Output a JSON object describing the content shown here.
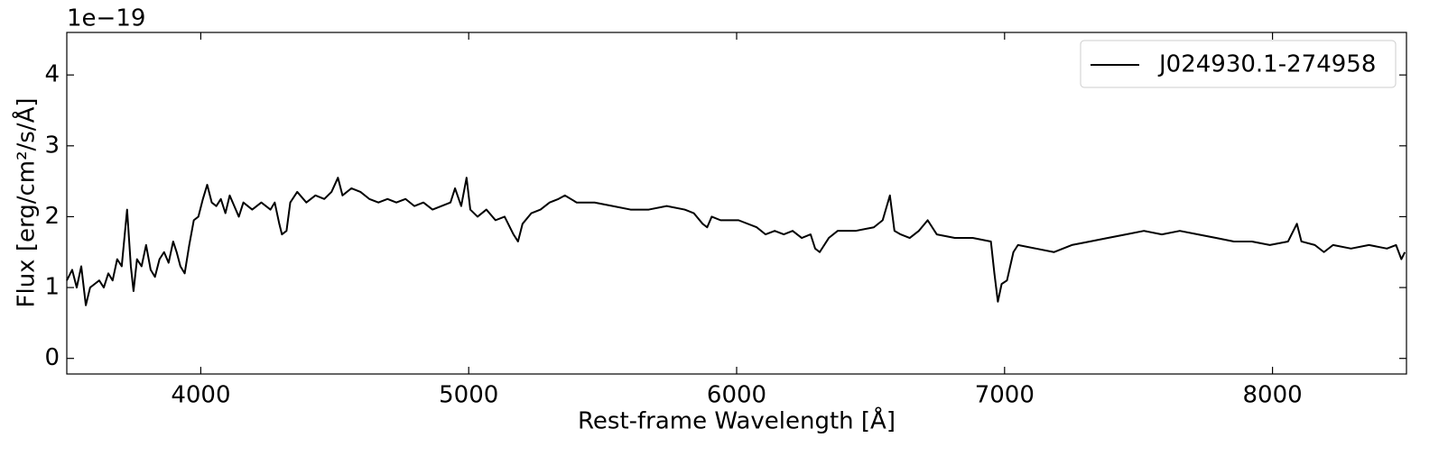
{
  "chart_data": {
    "type": "line",
    "offset_text": "1e−19",
    "x_label": "Rest-frame Wavelength [Å]",
    "y_label": "Flux [erg/cm²/s/Å]",
    "xlim": [
      3500,
      8500
    ],
    "ylim": [
      -0.22,
      4.6
    ],
    "xticks": [
      4000,
      5000,
      6000,
      7000,
      8000
    ],
    "yticks": [
      0,
      1,
      2,
      3,
      4
    ],
    "legend_position": "upper right",
    "x": [
      3500,
      3520,
      3537,
      3554,
      3571,
      3587,
      3604,
      3621,
      3638,
      3655,
      3671,
      3688,
      3705,
      3725,
      3739,
      3749,
      3762,
      3779,
      3796,
      3813,
      3829,
      3846,
      3863,
      3880,
      3897,
      3910,
      3924,
      3940,
      3957,
      3974,
      3991,
      4008,
      4024,
      4041,
      4058,
      4075,
      4092,
      4108,
      4125,
      4142,
      4159,
      4192,
      4226,
      4260,
      4276,
      4293,
      4303,
      4320,
      4334,
      4360,
      4394,
      4428,
      4461,
      4488,
      4512,
      4529,
      4562,
      4596,
      4629,
      4663,
      4697,
      4730,
      4764,
      4797,
      4831,
      4865,
      4898,
      4932,
      4949,
      4972,
      4992,
      5006,
      5033,
      5066,
      5100,
      5134,
      5167,
      5184,
      5201,
      5234,
      5268,
      5302,
      5335,
      5359,
      5403,
      5470,
      5537,
      5604,
      5672,
      5739,
      5806,
      5840,
      5873,
      5890,
      5907,
      5940,
      6007,
      6075,
      6108,
      6142,
      6176,
      6209,
      6243,
      6276,
      6293,
      6310,
      6344,
      6377,
      6444,
      6512,
      6545,
      6572,
      6589,
      6612,
      6646,
      6680,
      6713,
      6747,
      6814,
      6881,
      6949,
      6962,
      6975,
      6989,
      7009,
      7033,
      7050,
      7117,
      7184,
      7251,
      7318,
      7386,
      7453,
      7520,
      7587,
      7654,
      7722,
      7789,
      7856,
      7923,
      7990,
      8058,
      8091,
      8108,
      8158,
      8192,
      8226,
      8293,
      8360,
      8427,
      8461,
      8481,
      8494
    ],
    "series": [
      {
        "name": "J024930.1-274958",
        "color": "#000000",
        "values": [
          1.1,
          1.25,
          1.0,
          1.3,
          0.75,
          1.0,
          1.05,
          1.1,
          1.0,
          1.2,
          1.1,
          1.4,
          1.3,
          2.1,
          1.3,
          0.95,
          1.4,
          1.3,
          1.6,
          1.25,
          1.15,
          1.4,
          1.5,
          1.35,
          1.65,
          1.5,
          1.3,
          1.2,
          1.6,
          1.95,
          2.0,
          2.25,
          2.45,
          2.2,
          2.15,
          2.25,
          2.05,
          2.3,
          2.15,
          2.0,
          2.2,
          2.1,
          2.2,
          2.1,
          2.2,
          1.9,
          1.75,
          1.8,
          2.2,
          2.35,
          2.2,
          2.3,
          2.25,
          2.35,
          2.55,
          2.3,
          2.4,
          2.35,
          2.25,
          2.2,
          2.25,
          2.2,
          2.25,
          2.15,
          2.2,
          2.1,
          2.15,
          2.2,
          2.4,
          2.15,
          2.55,
          2.1,
          2.0,
          2.1,
          1.95,
          2.0,
          1.75,
          1.65,
          1.9,
          2.05,
          2.1,
          2.2,
          2.25,
          2.3,
          2.2,
          2.2,
          2.15,
          2.1,
          2.1,
          2.15,
          2.1,
          2.05,
          1.9,
          1.85,
          2.0,
          1.95,
          1.95,
          1.85,
          1.75,
          1.8,
          1.75,
          1.8,
          1.7,
          1.75,
          1.55,
          1.5,
          1.7,
          1.8,
          1.8,
          1.85,
          1.95,
          2.3,
          1.8,
          1.75,
          1.7,
          1.8,
          1.95,
          1.75,
          1.7,
          1.7,
          1.65,
          1.2,
          0.8,
          1.05,
          1.1,
          1.5,
          1.6,
          1.55,
          1.5,
          1.6,
          1.65,
          1.7,
          1.75,
          1.8,
          1.75,
          1.8,
          1.75,
          1.7,
          1.65,
          1.65,
          1.6,
          1.65,
          1.9,
          1.65,
          1.6,
          1.5,
          1.6,
          1.55,
          1.6,
          1.55,
          1.6,
          1.4,
          1.5
        ]
      }
    ]
  }
}
